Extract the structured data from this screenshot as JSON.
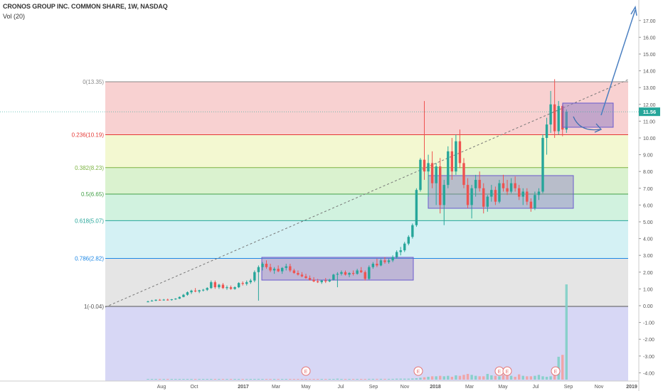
{
  "header": {
    "title": "CRONOS GROUP INC. COMMON SHARE, 1W, NASDAQ",
    "indicator": "Vol (20)"
  },
  "chart_data": {
    "type": "candlestick",
    "period": "1W",
    "symbol_name": "CRONOS GROUP INC. COMMON SHARE",
    "exchange": "NASDAQ",
    "y_axis": {
      "ticks": [
        17.0,
        16.0,
        15.0,
        14.0,
        13.0,
        12.0,
        11.0,
        10.0,
        9.0,
        8.0,
        7.0,
        6.0,
        5.0,
        4.0,
        3.0,
        2.0,
        1.0,
        0.0,
        -1.0,
        -2.0,
        -3.0,
        -4.0
      ],
      "tick_labels": [
        "17.00",
        "16.00",
        "15.00",
        "14.00",
        "13.00",
        "12.00",
        "11.00",
        "10.00",
        "9.00",
        "8.00",
        "7.00",
        "6.00",
        "5.00",
        "4.00",
        "3.00",
        "2.00",
        "1.00",
        "0.00",
        "-1.00",
        "-2.00",
        "-3.00",
        "-4.00"
      ],
      "range": [
        -4.5,
        18.5
      ]
    },
    "x_axis": {
      "tick_labels": [
        "Aug",
        "Oct",
        "2017",
        "Mar",
        "May",
        "Jul",
        "Sep",
        "Nov",
        "2018",
        "Mar",
        "May",
        "Jul",
        "Sep",
        "Nov",
        "2019"
      ]
    },
    "last_price": 11.56,
    "last_price_label": "11.56",
    "fibonacci": [
      {
        "label": "0(13.35)",
        "level": 13.35,
        "color": "#888888",
        "fill": "#f7c9c9"
      },
      {
        "label": "0.236(10.19)",
        "level": 10.19,
        "color": "#e53935",
        "fill": "#f1f7c9"
      },
      {
        "label": "0.382(8.23)",
        "level": 8.23,
        "color": "#7cb342",
        "fill": "#d4f0c7"
      },
      {
        "label": "0.5(6.65)",
        "level": 6.65,
        "color": "#43a047",
        "fill": "#c9f0d9"
      },
      {
        "label": "0.618(5.07)",
        "level": 5.07,
        "color": "#26a69a",
        "fill": "#cdeef2"
      },
      {
        "label": "0.786(2.82)",
        "level": 2.82,
        "color": "#1e88e5",
        "fill": "#e0e0e0"
      },
      {
        "label": "1(-0.04)",
        "level": -0.04,
        "color": "#555555",
        "fill": "#d0d0f3"
      }
    ],
    "earnings_markers": [
      "E",
      "E",
      "E",
      "E",
      "E"
    ],
    "candles": [
      {
        "o": 0.25,
        "h": 0.3,
        "l": 0.2,
        "c": 0.25
      },
      {
        "o": 0.28,
        "h": 0.35,
        "l": 0.25,
        "c": 0.3
      },
      {
        "o": 0.3,
        "h": 0.38,
        "l": 0.27,
        "c": 0.35
      },
      {
        "o": 0.35,
        "h": 0.4,
        "l": 0.3,
        "c": 0.33
      },
      {
        "o": 0.33,
        "h": 0.4,
        "l": 0.3,
        "c": 0.36
      },
      {
        "o": 0.36,
        "h": 0.42,
        "l": 0.3,
        "c": 0.34
      },
      {
        "o": 0.34,
        "h": 0.4,
        "l": 0.3,
        "c": 0.38
      },
      {
        "o": 0.38,
        "h": 0.45,
        "l": 0.35,
        "c": 0.42
      },
      {
        "o": 0.42,
        "h": 0.55,
        "l": 0.4,
        "c": 0.52
      },
      {
        "o": 0.52,
        "h": 0.7,
        "l": 0.5,
        "c": 0.65
      },
      {
        "o": 0.65,
        "h": 0.85,
        "l": 0.6,
        "c": 0.8
      },
      {
        "o": 0.8,
        "h": 0.95,
        "l": 0.7,
        "c": 0.9
      },
      {
        "o": 0.9,
        "h": 1.05,
        "l": 0.8,
        "c": 0.85
      },
      {
        "o": 0.85,
        "h": 0.95,
        "l": 0.75,
        "c": 0.92
      },
      {
        "o": 0.92,
        "h": 1.0,
        "l": 0.85,
        "c": 0.95
      },
      {
        "o": 0.95,
        "h": 1.1,
        "l": 0.88,
        "c": 1.05
      },
      {
        "o": 1.05,
        "h": 1.5,
        "l": 1.0,
        "c": 1.4
      },
      {
        "o": 1.4,
        "h": 1.5,
        "l": 1.0,
        "c": 1.1
      },
      {
        "o": 1.1,
        "h": 1.3,
        "l": 1.0,
        "c": 1.25
      },
      {
        "o": 1.25,
        "h": 1.35,
        "l": 1.0,
        "c": 1.05
      },
      {
        "o": 1.05,
        "h": 1.2,
        "l": 0.95,
        "c": 1.1
      },
      {
        "o": 1.1,
        "h": 1.2,
        "l": 0.95,
        "c": 1.0
      },
      {
        "o": 1.0,
        "h": 1.15,
        "l": 0.95,
        "c": 1.1
      },
      {
        "o": 1.1,
        "h": 1.4,
        "l": 1.05,
        "c": 1.35
      },
      {
        "o": 1.35,
        "h": 1.45,
        "l": 1.2,
        "c": 1.3
      },
      {
        "o": 1.3,
        "h": 1.5,
        "l": 1.2,
        "c": 1.4
      },
      {
        "o": 1.4,
        "h": 1.6,
        "l": 1.3,
        "c": 1.5
      },
      {
        "o": 1.5,
        "h": 2.1,
        "l": 1.4,
        "c": 2.0
      },
      {
        "o": 2.0,
        "h": 2.4,
        "l": 0.3,
        "c": 2.3
      },
      {
        "o": 2.3,
        "h": 2.6,
        "l": 2.1,
        "c": 2.5
      },
      {
        "o": 2.5,
        "h": 2.7,
        "l": 2.2,
        "c": 2.3
      },
      {
        "o": 2.3,
        "h": 2.5,
        "l": 2.0,
        "c": 2.1
      },
      {
        "o": 2.1,
        "h": 2.3,
        "l": 1.9,
        "c": 2.2
      },
      {
        "o": 2.2,
        "h": 2.4,
        "l": 2.0,
        "c": 2.05
      },
      {
        "o": 2.05,
        "h": 2.3,
        "l": 1.9,
        "c": 2.25
      },
      {
        "o": 2.25,
        "h": 2.5,
        "l": 2.1,
        "c": 2.35
      },
      {
        "o": 2.35,
        "h": 2.5,
        "l": 2.0,
        "c": 2.1
      },
      {
        "o": 2.1,
        "h": 2.2,
        "l": 1.9,
        "c": 1.95
      },
      {
        "o": 1.95,
        "h": 2.1,
        "l": 1.8,
        "c": 1.85
      },
      {
        "o": 1.85,
        "h": 2.0,
        "l": 1.7,
        "c": 1.75
      },
      {
        "o": 1.75,
        "h": 1.9,
        "l": 1.6,
        "c": 1.65
      },
      {
        "o": 1.65,
        "h": 1.8,
        "l": 1.5,
        "c": 1.55
      },
      {
        "o": 1.55,
        "h": 1.7,
        "l": 1.4,
        "c": 1.45
      },
      {
        "o": 1.45,
        "h": 1.6,
        "l": 1.35,
        "c": 1.4
      },
      {
        "o": 1.4,
        "h": 1.55,
        "l": 1.3,
        "c": 1.5
      },
      {
        "o": 1.5,
        "h": 1.65,
        "l": 1.35,
        "c": 1.45
      },
      {
        "o": 1.45,
        "h": 1.6,
        "l": 1.4,
        "c": 1.55
      },
      {
        "o": 1.55,
        "h": 1.9,
        "l": 1.5,
        "c": 1.85
      },
      {
        "o": 1.85,
        "h": 2.0,
        "l": 1.1,
        "c": 1.9
      },
      {
        "o": 1.9,
        "h": 2.1,
        "l": 1.8,
        "c": 2.0
      },
      {
        "o": 2.0,
        "h": 2.1,
        "l": 1.8,
        "c": 1.85
      },
      {
        "o": 1.85,
        "h": 2.0,
        "l": 1.7,
        "c": 1.95
      },
      {
        "o": 1.95,
        "h": 2.1,
        "l": 1.8,
        "c": 1.9
      },
      {
        "o": 1.9,
        "h": 2.2,
        "l": 1.85,
        "c": 2.1
      },
      {
        "o": 2.1,
        "h": 2.3,
        "l": 1.95,
        "c": 2.0
      },
      {
        "o": 2.0,
        "h": 2.1,
        "l": 1.5,
        "c": 1.6
      },
      {
        "o": 1.6,
        "h": 2.4,
        "l": 1.55,
        "c": 2.3
      },
      {
        "o": 2.3,
        "h": 2.6,
        "l": 2.2,
        "c": 2.5
      },
      {
        "o": 2.5,
        "h": 2.8,
        "l": 2.3,
        "c": 2.4
      },
      {
        "o": 2.4,
        "h": 2.8,
        "l": 2.35,
        "c": 2.7
      },
      {
        "o": 2.7,
        "h": 2.9,
        "l": 2.5,
        "c": 2.6
      },
      {
        "o": 2.6,
        "h": 2.8,
        "l": 2.5,
        "c": 2.7
      },
      {
        "o": 2.7,
        "h": 3.0,
        "l": 2.6,
        "c": 2.9
      },
      {
        "o": 2.9,
        "h": 3.3,
        "l": 2.8,
        "c": 3.2
      },
      {
        "o": 3.2,
        "h": 3.5,
        "l": 3.0,
        "c": 3.3
      },
      {
        "o": 3.3,
        "h": 3.8,
        "l": 3.2,
        "c": 3.7
      },
      {
        "o": 3.7,
        "h": 4.2,
        "l": 3.6,
        "c": 4.1
      },
      {
        "o": 4.1,
        "h": 4.9,
        "l": 4.0,
        "c": 4.8
      },
      {
        "o": 4.8,
        "h": 7.0,
        "l": 4.7,
        "c": 6.9
      },
      {
        "o": 6.9,
        "h": 8.8,
        "l": 6.8,
        "c": 8.7
      },
      {
        "o": 8.7,
        "h": 12.2,
        "l": 7.5,
        "c": 8.0
      },
      {
        "o": 8.0,
        "h": 9.0,
        "l": 6.5,
        "c": 8.5
      },
      {
        "o": 8.5,
        "h": 9.2,
        "l": 7.0,
        "c": 7.3
      },
      {
        "o": 7.3,
        "h": 8.5,
        "l": 6.0,
        "c": 8.3
      },
      {
        "o": 8.3,
        "h": 8.8,
        "l": 5.5,
        "c": 6.0
      },
      {
        "o": 6.0,
        "h": 7.5,
        "l": 4.8,
        "c": 7.2
      },
      {
        "o": 7.2,
        "h": 9.5,
        "l": 7.0,
        "c": 9.2
      },
      {
        "o": 9.2,
        "h": 10.0,
        "l": 7.5,
        "c": 8.0
      },
      {
        "o": 8.0,
        "h": 10.2,
        "l": 7.8,
        "c": 9.8
      },
      {
        "o": 9.8,
        "h": 10.5,
        "l": 8.2,
        "c": 8.5
      },
      {
        "o": 8.5,
        "h": 8.8,
        "l": 7.0,
        "c": 7.2
      },
      {
        "o": 7.2,
        "h": 7.6,
        "l": 5.8,
        "c": 6.0
      },
      {
        "o": 6.0,
        "h": 7.2,
        "l": 5.2,
        "c": 7.0
      },
      {
        "o": 7.0,
        "h": 7.8,
        "l": 6.5,
        "c": 7.5
      },
      {
        "o": 7.5,
        "h": 8.0,
        "l": 6.8,
        "c": 7.0
      },
      {
        "o": 7.0,
        "h": 7.3,
        "l": 5.5,
        "c": 5.9
      },
      {
        "o": 5.9,
        "h": 6.6,
        "l": 5.6,
        "c": 6.5
      },
      {
        "o": 6.5,
        "h": 7.2,
        "l": 6.2,
        "c": 6.9
      },
      {
        "o": 6.9,
        "h": 7.1,
        "l": 6.0,
        "c": 6.2
      },
      {
        "o": 6.2,
        "h": 7.5,
        "l": 6.1,
        "c": 7.3
      },
      {
        "o": 7.3,
        "h": 7.8,
        "l": 6.8,
        "c": 7.0
      },
      {
        "o": 7.0,
        "h": 7.5,
        "l": 6.6,
        "c": 6.8
      },
      {
        "o": 6.8,
        "h": 7.6,
        "l": 6.7,
        "c": 7.3
      },
      {
        "o": 7.3,
        "h": 7.7,
        "l": 6.8,
        "c": 7.0
      },
      {
        "o": 7.0,
        "h": 7.2,
        "l": 6.3,
        "c": 6.5
      },
      {
        "o": 6.5,
        "h": 7.0,
        "l": 6.0,
        "c": 6.8
      },
      {
        "o": 6.8,
        "h": 7.0,
        "l": 6.0,
        "c": 6.2
      },
      {
        "o": 6.2,
        "h": 6.4,
        "l": 5.6,
        "c": 5.8
      },
      {
        "o": 5.8,
        "h": 6.8,
        "l": 5.7,
        "c": 6.6
      },
      {
        "o": 6.6,
        "h": 7.0,
        "l": 6.3,
        "c": 6.8
      },
      {
        "o": 6.8,
        "h": 10.2,
        "l": 6.7,
        "c": 10.0
      },
      {
        "o": 10.0,
        "h": 11.2,
        "l": 9.0,
        "c": 10.8
      },
      {
        "o": 10.8,
        "h": 12.8,
        "l": 10.3,
        "c": 12.0
      },
      {
        "o": 12.0,
        "h": 13.5,
        "l": 10.0,
        "c": 10.4
      },
      {
        "o": 10.4,
        "h": 12.2,
        "l": 10.2,
        "c": 11.9
      },
      {
        "o": 11.9,
        "h": 12.0,
        "l": 10.1,
        "c": 10.5
      },
      {
        "o": 10.5,
        "h": 11.7,
        "l": 10.3,
        "c": 11.56
      }
    ],
    "volume": [
      0.002,
      0.002,
      0.002,
      0.002,
      0.002,
      0.002,
      0.002,
      0.002,
      0.002,
      0.003,
      0.003,
      0.003,
      0.003,
      0.003,
      0.003,
      0.003,
      0.004,
      0.004,
      0.004,
      0.004,
      0.004,
      0.004,
      0.004,
      0.004,
      0.005,
      0.005,
      0.005,
      0.005,
      0.008,
      0.006,
      0.006,
      0.006,
      0.006,
      0.006,
      0.006,
      0.006,
      0.006,
      0.006,
      0.006,
      0.006,
      0.006,
      0.006,
      0.006,
      0.006,
      0.006,
      0.006,
      0.006,
      0.006,
      0.01,
      0.006,
      0.006,
      0.006,
      0.006,
      0.006,
      0.006,
      0.006,
      0.008,
      0.008,
      0.008,
      0.008,
      0.008,
      0.008,
      0.008,
      0.01,
      0.01,
      0.01,
      0.01,
      0.012,
      0.015,
      0.02,
      0.025,
      0.03,
      0.035,
      0.035,
      0.04,
      0.035,
      0.04,
      0.03,
      0.045,
      0.04,
      0.05,
      0.06,
      0.05,
      0.04,
      0.035,
      0.035,
      0.06,
      0.045,
      0.04,
      0.035,
      0.05,
      0.045,
      0.04,
      0.03,
      0.055,
      0.04,
      0.035,
      0.035,
      0.04,
      0.05,
      0.035,
      0.03,
      0.035,
      0.045,
      0.24,
      0.26,
      1.0,
      0.62,
      0.24,
      0.15
    ],
    "annotations": {
      "consolidation_boxes": 3,
      "trend_line": "dashed diagonal from 2016 low to 2018 top",
      "projection_arrow": "up-right arrow toward ~17.7"
    }
  }
}
